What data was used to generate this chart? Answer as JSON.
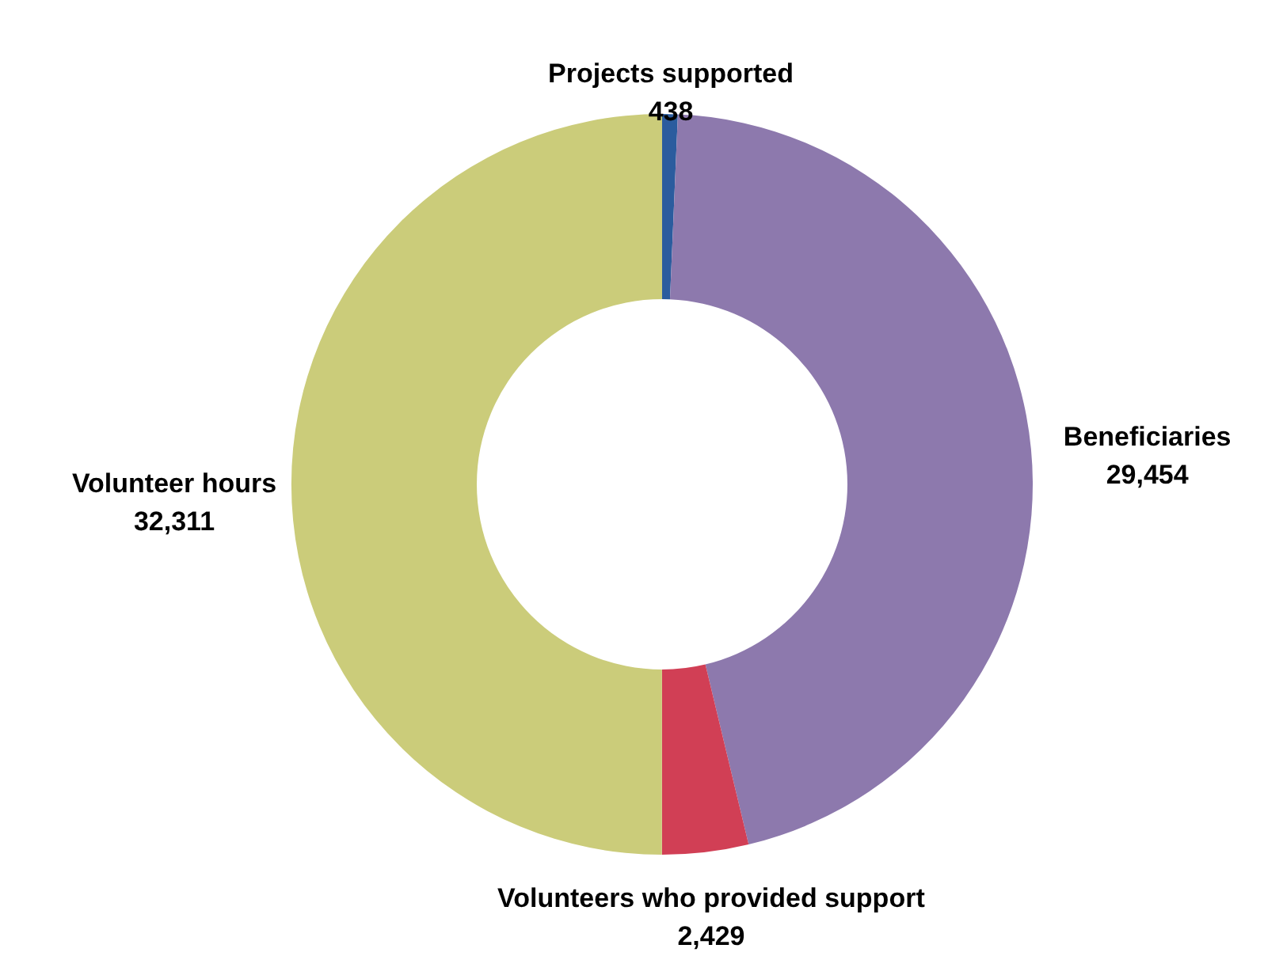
{
  "chart_data": {
    "type": "donut",
    "categories": [
      "Projects supported",
      "Beneficiaries",
      "Volunteers who provided support",
      "Volunteer hours"
    ],
    "values": [
      438,
      29454,
      2429,
      32311
    ],
    "colors": [
      "#2b5c9e",
      "#8d79ad",
      "#d13f55",
      "#cbcc7a"
    ],
    "value_labels": [
      "438",
      "29,454",
      "2,429",
      "32,311"
    ]
  }
}
